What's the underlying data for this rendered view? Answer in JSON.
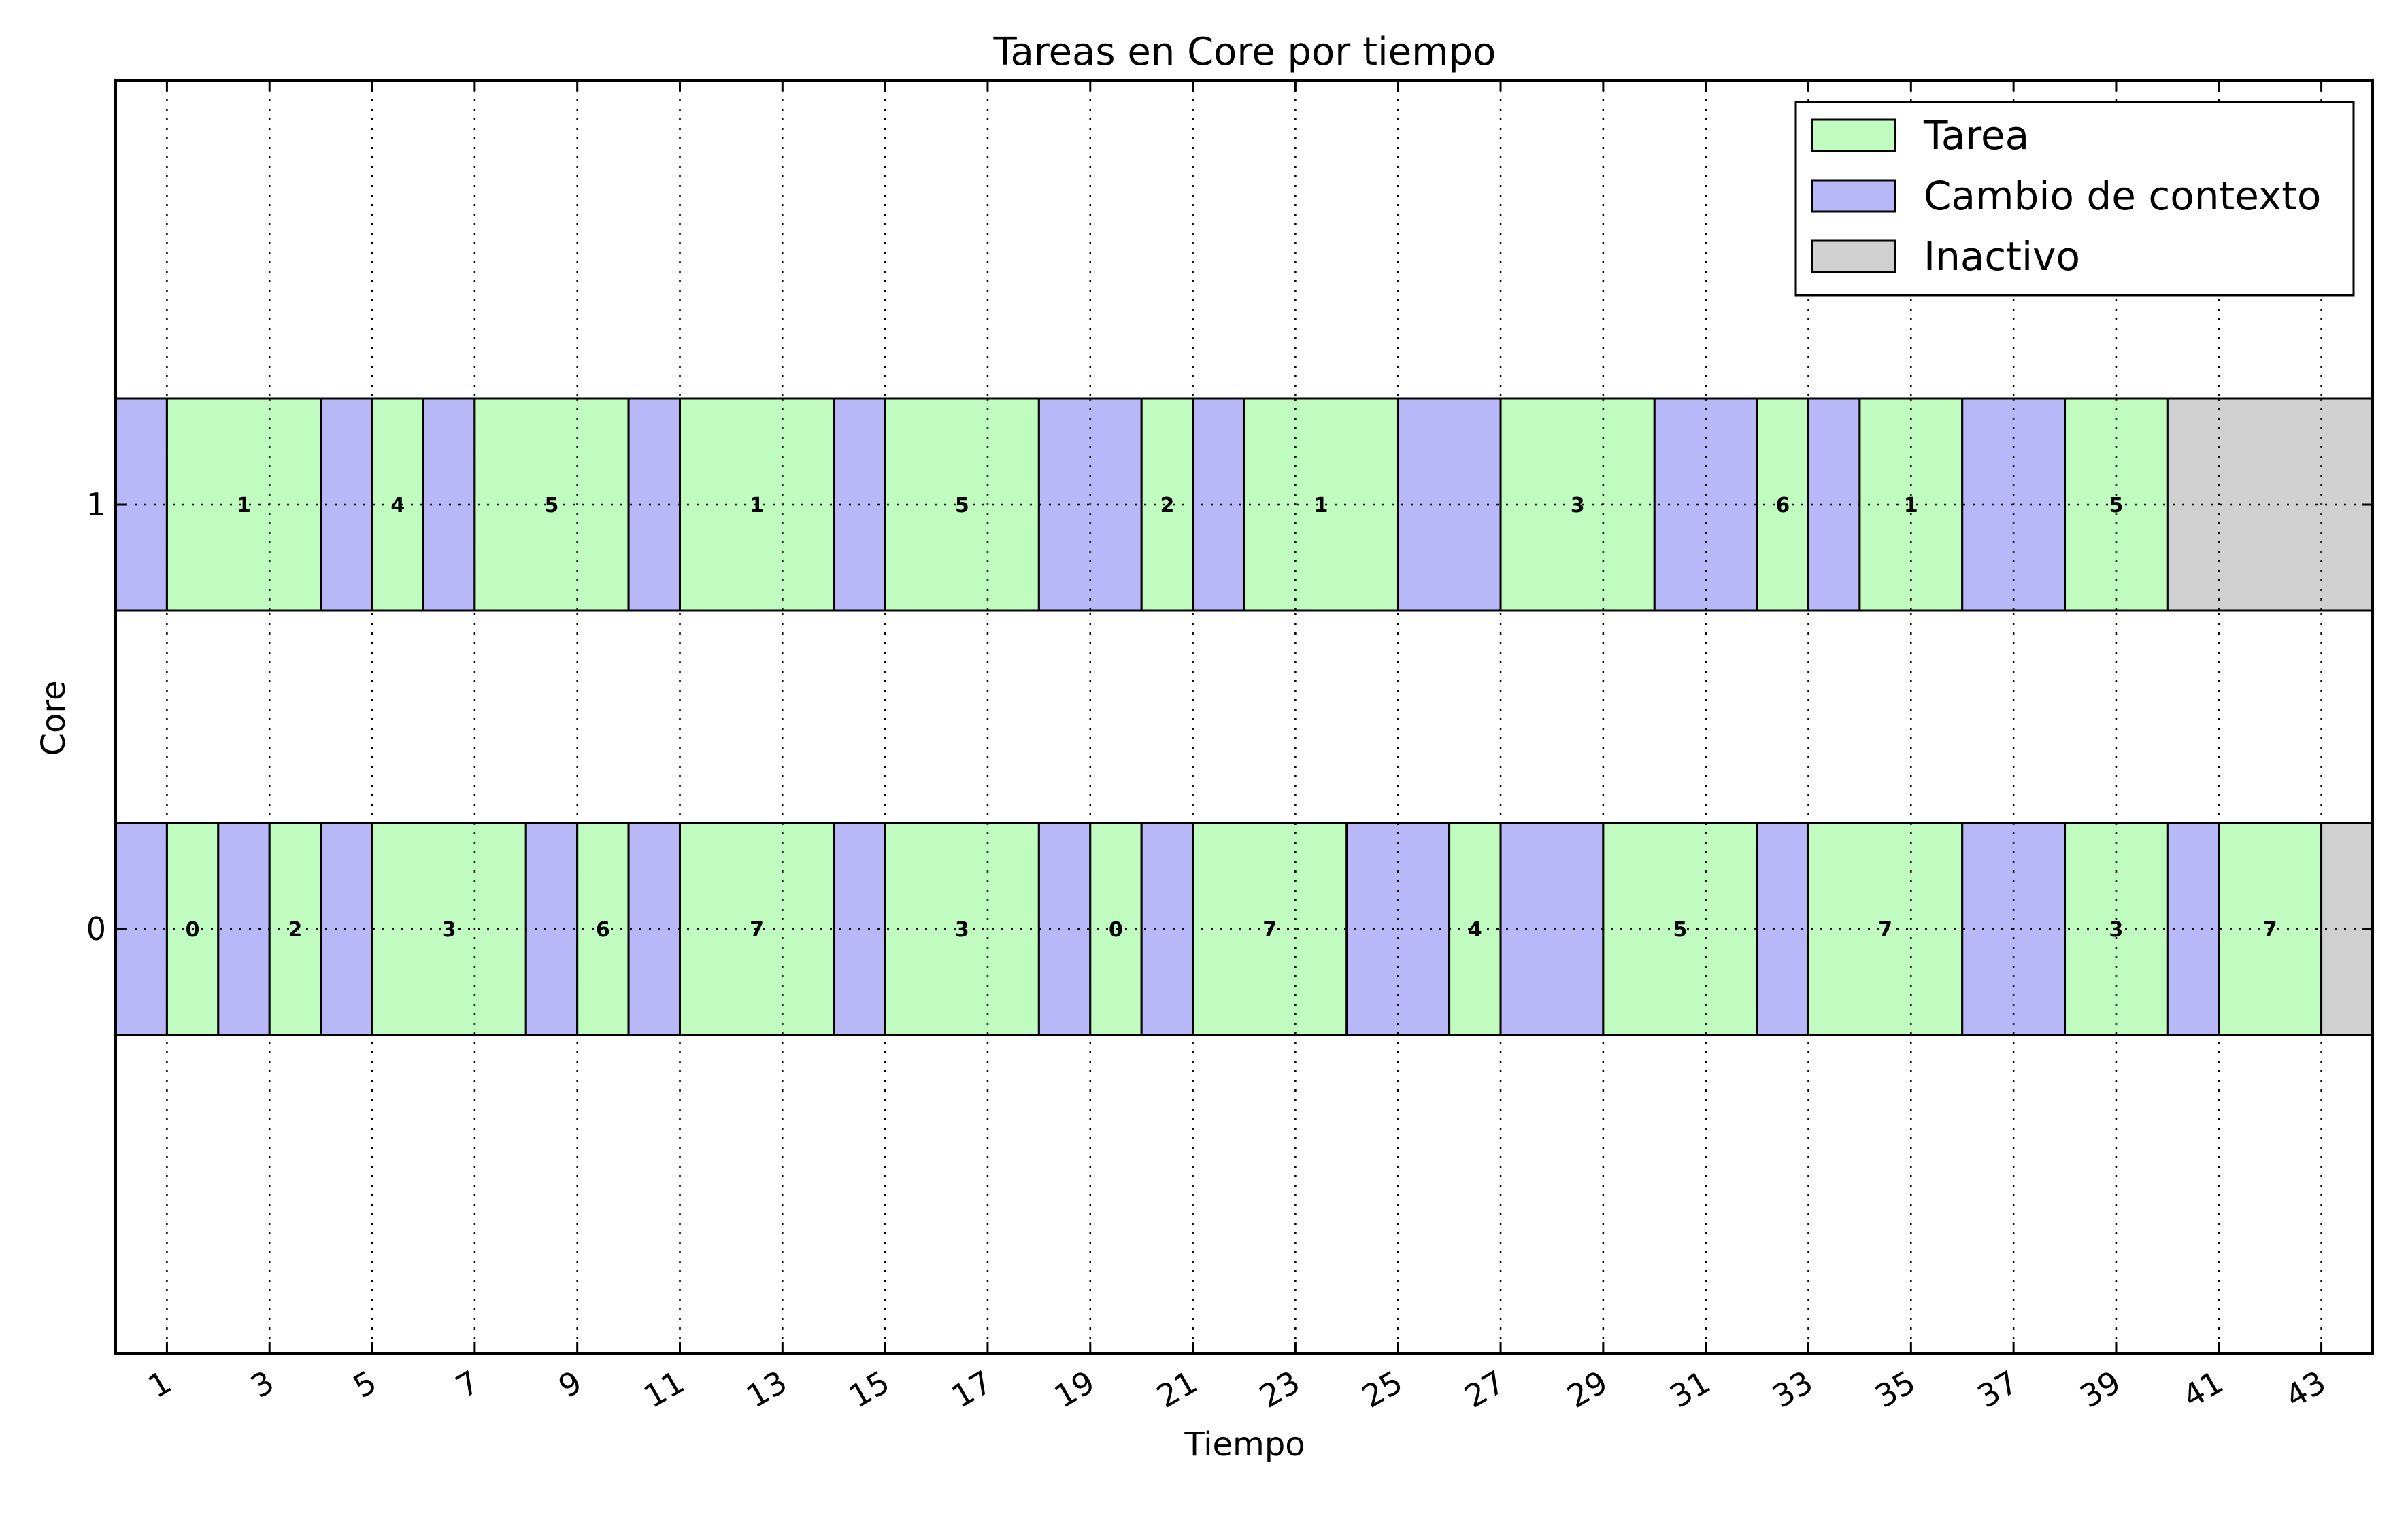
{
  "chart_data": {
    "type": "gantt",
    "title": "Tareas en Core por tiempo",
    "xlabel": "Tiempo",
    "ylabel": "Core",
    "xlim": [
      0,
      44
    ],
    "ylim": [
      -1,
      2
    ],
    "xticks": [
      1,
      3,
      5,
      7,
      9,
      11,
      13,
      15,
      17,
      19,
      21,
      23,
      25,
      27,
      29,
      31,
      33,
      35,
      37,
      39,
      41,
      43
    ],
    "yticks": [
      0,
      1
    ],
    "grid": true,
    "legend_position": "top-right",
    "legend": [
      {
        "key": "task",
        "label": "Tarea",
        "color": "#c0fcc0"
      },
      {
        "key": "switch",
        "label": "Cambio de contexto",
        "color": "#b8b8f8"
      },
      {
        "key": "idle",
        "label": "Inactivo",
        "color": "#d0d0d0"
      }
    ],
    "cores": [
      {
        "core": 1,
        "segments": [
          {
            "kind": "switch",
            "start": 0,
            "end": 1,
            "label": ""
          },
          {
            "kind": "task",
            "start": 1,
            "end": 4,
            "label": "1"
          },
          {
            "kind": "switch",
            "start": 4,
            "end": 5,
            "label": ""
          },
          {
            "kind": "task",
            "start": 5,
            "end": 6,
            "label": "4"
          },
          {
            "kind": "switch",
            "start": 6,
            "end": 7,
            "label": ""
          },
          {
            "kind": "task",
            "start": 7,
            "end": 10,
            "label": "5"
          },
          {
            "kind": "switch",
            "start": 10,
            "end": 11,
            "label": ""
          },
          {
            "kind": "task",
            "start": 11,
            "end": 14,
            "label": "1"
          },
          {
            "kind": "switch",
            "start": 14,
            "end": 15,
            "label": ""
          },
          {
            "kind": "task",
            "start": 15,
            "end": 18,
            "label": "5"
          },
          {
            "kind": "switch",
            "start": 18,
            "end": 20,
            "label": ""
          },
          {
            "kind": "task",
            "start": 20,
            "end": 21,
            "label": "2"
          },
          {
            "kind": "switch",
            "start": 21,
            "end": 22,
            "label": ""
          },
          {
            "kind": "task",
            "start": 22,
            "end": 25,
            "label": "1"
          },
          {
            "kind": "switch",
            "start": 25,
            "end": 27,
            "label": ""
          },
          {
            "kind": "task",
            "start": 27,
            "end": 30,
            "label": "3"
          },
          {
            "kind": "switch",
            "start": 30,
            "end": 32,
            "label": ""
          },
          {
            "kind": "task",
            "start": 32,
            "end": 33,
            "label": "6"
          },
          {
            "kind": "switch",
            "start": 33,
            "end": 34,
            "label": ""
          },
          {
            "kind": "task",
            "start": 34,
            "end": 36,
            "label": "1"
          },
          {
            "kind": "switch",
            "start": 36,
            "end": 38,
            "label": ""
          },
          {
            "kind": "task",
            "start": 38,
            "end": 40,
            "label": "5"
          },
          {
            "kind": "idle",
            "start": 40,
            "end": 44,
            "label": ""
          }
        ]
      },
      {
        "core": 0,
        "segments": [
          {
            "kind": "switch",
            "start": 0,
            "end": 1,
            "label": ""
          },
          {
            "kind": "task",
            "start": 1,
            "end": 2,
            "label": "0"
          },
          {
            "kind": "switch",
            "start": 2,
            "end": 3,
            "label": ""
          },
          {
            "kind": "task",
            "start": 3,
            "end": 4,
            "label": "2"
          },
          {
            "kind": "switch",
            "start": 4,
            "end": 5,
            "label": ""
          },
          {
            "kind": "task",
            "start": 5,
            "end": 8,
            "label": "3"
          },
          {
            "kind": "switch",
            "start": 8,
            "end": 9,
            "label": ""
          },
          {
            "kind": "task",
            "start": 9,
            "end": 10,
            "label": "6"
          },
          {
            "kind": "switch",
            "start": 10,
            "end": 11,
            "label": ""
          },
          {
            "kind": "task",
            "start": 11,
            "end": 14,
            "label": "7"
          },
          {
            "kind": "switch",
            "start": 14,
            "end": 15,
            "label": ""
          },
          {
            "kind": "task",
            "start": 15,
            "end": 18,
            "label": "3"
          },
          {
            "kind": "switch",
            "start": 18,
            "end": 19,
            "label": ""
          },
          {
            "kind": "task",
            "start": 19,
            "end": 20,
            "label": "0"
          },
          {
            "kind": "switch",
            "start": 20,
            "end": 21,
            "label": ""
          },
          {
            "kind": "task",
            "start": 21,
            "end": 24,
            "label": "7"
          },
          {
            "kind": "switch",
            "start": 24,
            "end": 26,
            "label": ""
          },
          {
            "kind": "task",
            "start": 26,
            "end": 27,
            "label": "4"
          },
          {
            "kind": "switch",
            "start": 27,
            "end": 29,
            "label": ""
          },
          {
            "kind": "task",
            "start": 29,
            "end": 32,
            "label": "5"
          },
          {
            "kind": "switch",
            "start": 32,
            "end": 33,
            "label": ""
          },
          {
            "kind": "task",
            "start": 33,
            "end": 36,
            "label": "7"
          },
          {
            "kind": "switch",
            "start": 36,
            "end": 38,
            "label": ""
          },
          {
            "kind": "task",
            "start": 38,
            "end": 40,
            "label": "3"
          },
          {
            "kind": "switch",
            "start": 40,
            "end": 41,
            "label": ""
          },
          {
            "kind": "task",
            "start": 41,
            "end": 43,
            "label": "7"
          },
          {
            "kind": "idle",
            "start": 43,
            "end": 44,
            "label": ""
          }
        ]
      }
    ]
  }
}
